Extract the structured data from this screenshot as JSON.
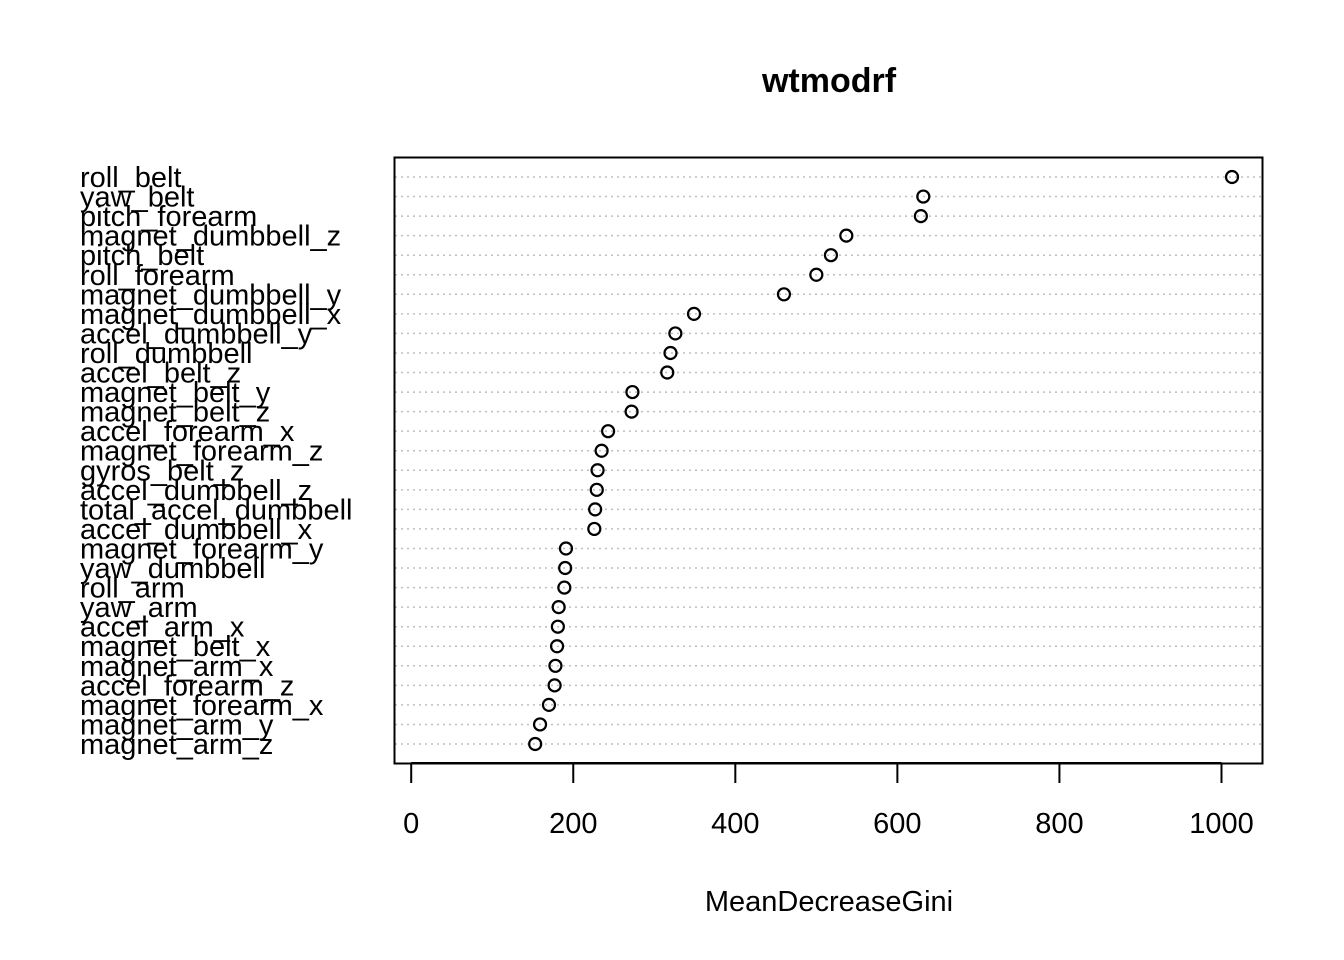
{
  "chart_data": {
    "type": "scatter",
    "title": "wtmodrf",
    "xlabel": "MeanDecreaseGini",
    "ylabel": "",
    "xlim": [
      -20,
      1050
    ],
    "xticks": [
      0,
      200,
      400,
      600,
      800,
      1000
    ],
    "grid": "horizontal dotted",
    "marker": "open circle",
    "categories": [
      "roll_belt",
      "yaw_belt",
      "pitch_forearm",
      "magnet_dumbbell_z",
      "pitch_belt",
      "roll_forearm",
      "magnet_dumbbell_y",
      "magnet_dumbbell_x",
      "accel_dumbbell_y",
      "roll_dumbbell",
      "accel_belt_z",
      "magnet_belt_y",
      "magnet_belt_z",
      "accel_forearm_x",
      "magnet_forearm_z",
      "gyros_belt_z",
      "accel_dumbbell_z",
      "total_accel_dumbbell",
      "accel_dumbbell_x",
      "magnet_forearm_y",
      "yaw_dumbbell",
      "roll_arm",
      "yaw_arm",
      "accel_arm_x",
      "magnet_belt_x",
      "magnet_arm_x",
      "accel_forearm_z",
      "magnet_forearm_x",
      "magnet_arm_y",
      "magnet_arm_z"
    ],
    "values": [
      1013,
      632,
      629,
      537,
      518,
      500,
      460,
      349,
      326,
      320,
      316,
      273,
      272,
      243,
      235,
      230,
      229,
      227,
      226,
      191,
      190,
      189,
      182,
      181,
      180,
      178,
      177,
      170,
      159,
      153
    ]
  }
}
